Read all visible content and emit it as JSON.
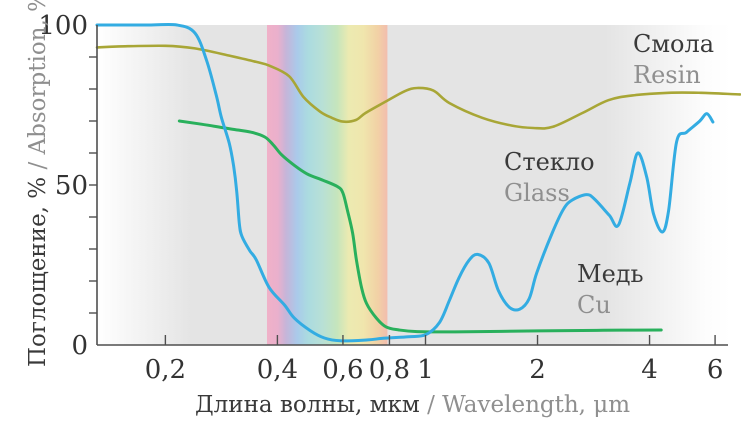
{
  "chart_data": {
    "type": "line",
    "x_scale": "log",
    "xlim": [
      0.131,
      7.0
    ],
    "ylim": [
      0,
      100
    ],
    "grid": false,
    "xlabel_ru": "Длина волны, мкм",
    "xlabel_sep": " / ",
    "xlabel_en": "Wavelength, μm",
    "ylabel_ru": "Поглощение, %",
    "ylabel_sep": " / ",
    "ylabel_en": "Absorption, %",
    "x_ticks": [
      {
        "v": 0.2,
        "label": "0,2"
      },
      {
        "v": 0.4,
        "label": "0,4"
      },
      {
        "v": 0.6,
        "label": "0,6"
      },
      {
        "v": 0.8,
        "label": "0,8"
      },
      {
        "v": 1,
        "label": "1"
      },
      {
        "v": 2,
        "label": "2"
      },
      {
        "v": 4,
        "label": "4"
      },
      {
        "v": 6,
        "label": "6"
      }
    ],
    "y_ticks": [
      {
        "v": 0,
        "label": "0"
      },
      {
        "v": 50,
        "label": "50"
      },
      {
        "v": 100,
        "label": "100"
      }
    ],
    "y_minor_step": 10,
    "series": [
      {
        "name_ru": "Смола",
        "name_en": "Resin",
        "color": "#a8a636",
        "points": [
          [
            0.131,
            93
          ],
          [
            0.15,
            93.3
          ],
          [
            0.2,
            93.5
          ],
          [
            0.24,
            92.7
          ],
          [
            0.3,
            90.3
          ],
          [
            0.35,
            88.5
          ],
          [
            0.38,
            87.3
          ],
          [
            0.43,
            84
          ],
          [
            0.47,
            77.5
          ],
          [
            0.52,
            73
          ],
          [
            0.56,
            71
          ],
          [
            0.6,
            69.8
          ],
          [
            0.65,
            70.3
          ],
          [
            0.69,
            72.5
          ],
          [
            0.78,
            76
          ],
          [
            0.88,
            79.3
          ],
          [
            0.95,
            80.3
          ],
          [
            1.05,
            79.5
          ],
          [
            1.16,
            75.6
          ],
          [
            1.42,
            71
          ],
          [
            1.7,
            68.6
          ],
          [
            1.95,
            67.8
          ],
          [
            2.2,
            68.2
          ],
          [
            2.64,
            72.5
          ],
          [
            3.1,
            76.5
          ],
          [
            3.6,
            78
          ],
          [
            4.5,
            78.8
          ],
          [
            5.5,
            78.8
          ],
          [
            7.0,
            78.3
          ]
        ]
      },
      {
        "name_ru": "Стекло",
        "name_en": "Glass",
        "color": "#29b05c",
        "points": [
          [
            0.218,
            70
          ],
          [
            0.25,
            69
          ],
          [
            0.3,
            67.5
          ],
          [
            0.34,
            66.5
          ],
          [
            0.37,
            65
          ],
          [
            0.39,
            62.5
          ],
          [
            0.41,
            59.5
          ],
          [
            0.44,
            56.5
          ],
          [
            0.48,
            53.5
          ],
          [
            0.53,
            51.5
          ],
          [
            0.58,
            49.5
          ],
          [
            0.6,
            47.5
          ],
          [
            0.617,
            42
          ],
          [
            0.637,
            35
          ],
          [
            0.652,
            26.6
          ],
          [
            0.673,
            18
          ],
          [
            0.694,
            13
          ],
          [
            0.738,
            8.4
          ],
          [
            0.785,
            5.6
          ],
          [
            0.85,
            4.7
          ],
          [
            0.95,
            4.2
          ],
          [
            1.2,
            4.1
          ],
          [
            2.0,
            4.4
          ],
          [
            3.0,
            4.6
          ],
          [
            4.3,
            4.7
          ]
        ]
      },
      {
        "name_ru": "Медь",
        "name_en": "Cu",
        "color": "#33ace2",
        "points": [
          [
            0.131,
            100
          ],
          [
            0.18,
            100
          ],
          [
            0.215,
            100
          ],
          [
            0.24,
            97.5
          ],
          [
            0.258,
            89
          ],
          [
            0.274,
            78
          ],
          [
            0.283,
            71
          ],
          [
            0.297,
            63
          ],
          [
            0.305,
            56
          ],
          [
            0.311,
            48
          ],
          [
            0.316,
            38
          ],
          [
            0.321,
            34
          ],
          [
            0.337,
            29.5
          ],
          [
            0.351,
            26.6
          ],
          [
            0.38,
            18
          ],
          [
            0.418,
            12.5
          ],
          [
            0.444,
            8.4
          ],
          [
            0.49,
            4.5
          ],
          [
            0.535,
            2.2
          ],
          [
            0.59,
            1.3
          ],
          [
            0.7,
            1.6
          ],
          [
            0.77,
            2.1
          ],
          [
            0.9,
            2.6
          ],
          [
            1.0,
            3.2
          ],
          [
            1.09,
            7
          ],
          [
            1.16,
            14
          ],
          [
            1.23,
            21
          ],
          [
            1.31,
            26.5
          ],
          [
            1.38,
            28.3
          ],
          [
            1.48,
            25.6
          ],
          [
            1.57,
            17
          ],
          [
            1.68,
            11.8
          ],
          [
            1.79,
            11.2
          ],
          [
            1.9,
            14.5
          ],
          [
            1.99,
            22.5
          ],
          [
            2.19,
            35
          ],
          [
            2.35,
            42.5
          ],
          [
            2.48,
            45.3
          ],
          [
            2.71,
            47
          ],
          [
            2.85,
            45.5
          ],
          [
            3.12,
            40.5
          ],
          [
            3.3,
            37.5
          ],
          [
            3.54,
            50.5
          ],
          [
            3.72,
            60
          ],
          [
            3.93,
            52.5
          ],
          [
            4.1,
            41
          ],
          [
            4.33,
            35.3
          ],
          [
            4.5,
            42
          ],
          [
            4.73,
            63.5
          ],
          [
            5.03,
            66.5
          ],
          [
            5.46,
            70
          ],
          [
            5.7,
            72.3
          ],
          [
            5.92,
            69.7
          ]
        ]
      }
    ],
    "visible_spectrum_band": {
      "from_um": 0.375,
      "to_um": 0.79,
      "opacity": 0.5,
      "stops": [
        {
          "offset": 0.0,
          "color": "#fc7eac"
        },
        {
          "offset": 0.09,
          "color": "#f07cb4"
        },
        {
          "offset": 0.16,
          "color": "#a686ce"
        },
        {
          "offset": 0.25,
          "color": "#70b0f0"
        },
        {
          "offset": 0.34,
          "color": "#72d2dc"
        },
        {
          "offset": 0.46,
          "color": "#8cdcc8"
        },
        {
          "offset": 0.58,
          "color": "#a6e696"
        },
        {
          "offset": 0.68,
          "color": "#f4f07e"
        },
        {
          "offset": 0.8,
          "color": "#fbe876"
        },
        {
          "offset": 0.92,
          "color": "#ffbe66"
        },
        {
          "offset": 1.0,
          "color": "#ff9678"
        }
      ]
    },
    "background": {
      "plot_gray": "#e4e4e4",
      "fade_edges": "white at far left and far right"
    }
  },
  "text_colors": {
    "ru": "#3a3a3a",
    "en": "#8f8f8f",
    "axis": "#4f4f4f",
    "tick_label": "#333333"
  }
}
